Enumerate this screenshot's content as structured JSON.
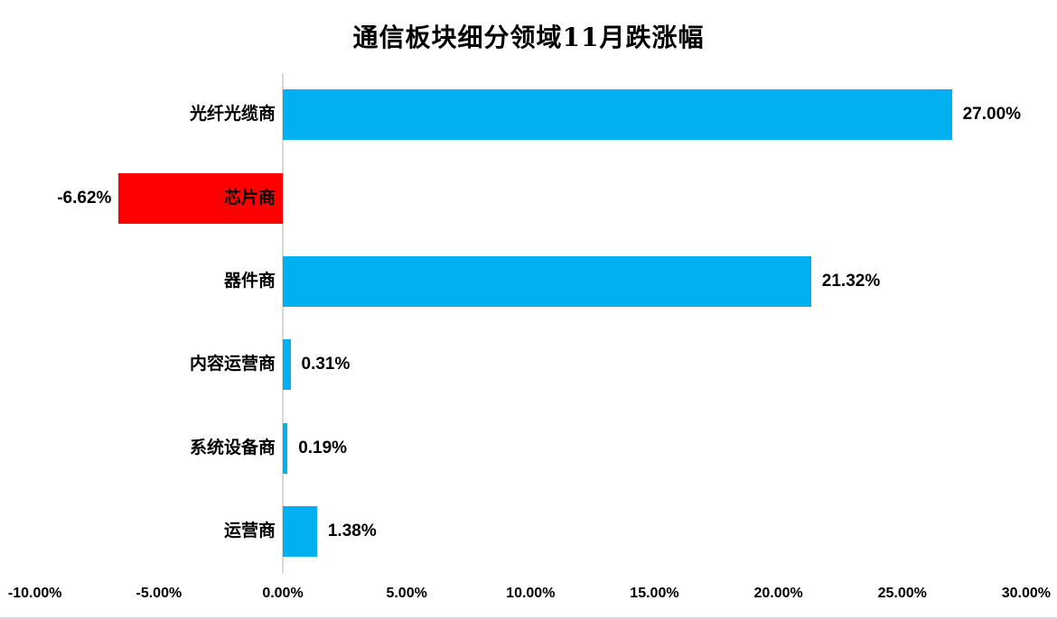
{
  "title": "通信板块细分领域11月跌涨幅",
  "chart_data": {
    "type": "bar",
    "orientation": "horizontal",
    "title": "通信板块细分领域11月跌涨幅",
    "categories": [
      "光纤光缆商",
      "芯片商",
      "器件商",
      "内容运营商",
      "系统设备商",
      "运营商"
    ],
    "values": [
      27.0,
      -6.62,
      21.32,
      0.31,
      0.19,
      1.38
    ],
    "value_labels": [
      "27.00%",
      "-6.62%",
      "21.32%",
      "0.31%",
      "0.19%",
      "1.38%"
    ],
    "x_tick_labels": [
      "-10.00%",
      "-5.00%",
      "0.00%",
      "5.00%",
      "10.00%",
      "15.00%",
      "20.00%",
      "25.00%",
      "30.00%"
    ],
    "x_tick_values": [
      -10,
      -5,
      0,
      5,
      10,
      15,
      20,
      25,
      30
    ],
    "xlim": [
      -10,
      30
    ],
    "grid": false,
    "legend": "none",
    "colors": {
      "positive_bar": "#00B0F0",
      "negative_bar": "#FF0000",
      "axis_line": "#D9D9D9",
      "text": "#000000",
      "background": "#FFFFFF"
    }
  }
}
